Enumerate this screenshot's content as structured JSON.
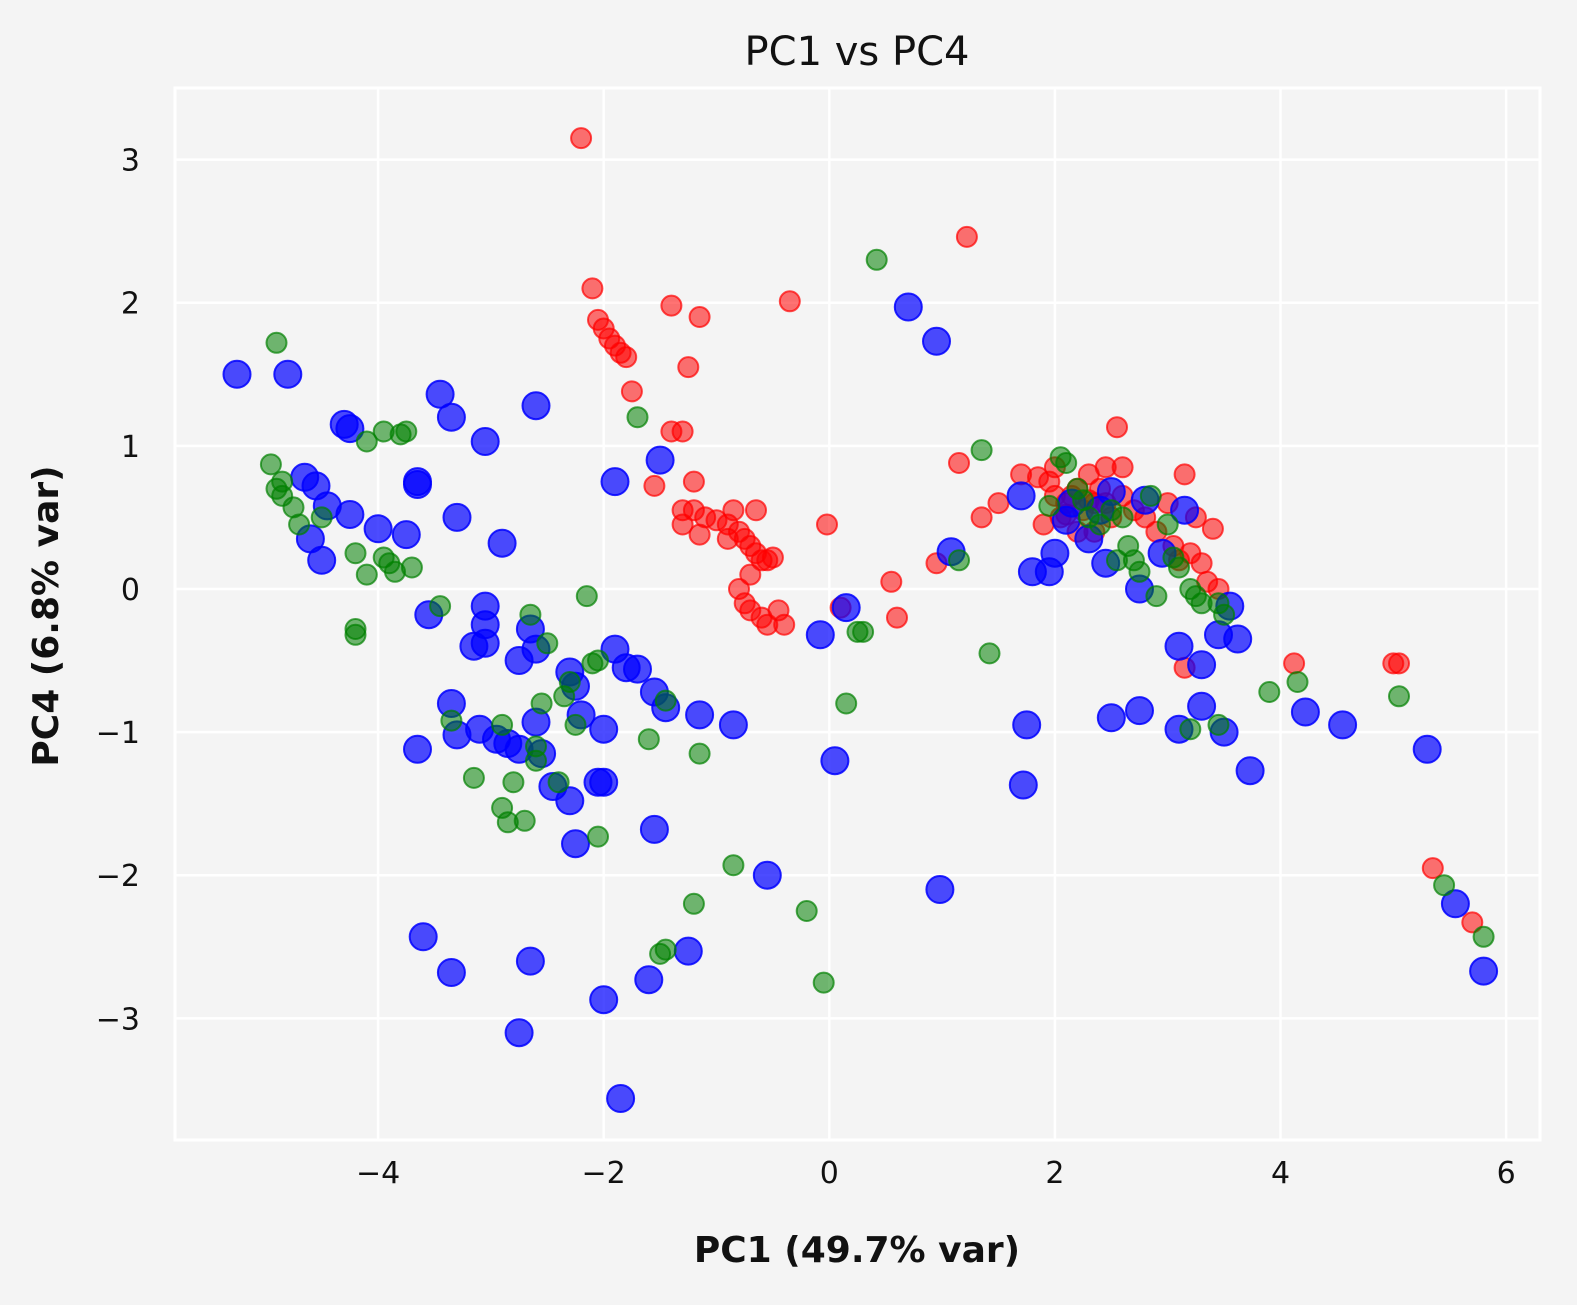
{
  "chart_data": {
    "type": "scatter",
    "title": "PC1 vs PC4",
    "xlabel": "PC1 (49.7% var)",
    "ylabel": "PC4 (6.8% var)",
    "xlim": [
      -5.8,
      6.3
    ],
    "ylim": [
      -3.85,
      3.5
    ],
    "xticks": [
      -4,
      -2,
      0,
      2,
      4,
      6
    ],
    "xtick_labels": [
      "−4",
      "−2",
      "0",
      "2",
      "4",
      "6"
    ],
    "yticks": [
      -3,
      -2,
      -1,
      0,
      1,
      2,
      3
    ],
    "ytick_labels": [
      "−3",
      "−2",
      "−1",
      "0",
      "1",
      "2",
      "3"
    ],
    "grid": true,
    "legend": null,
    "series": [
      {
        "name": "red",
        "color": "#ff0000",
        "opacity": 0.55,
        "size": "small",
        "points": [
          [
            -2.2,
            3.15
          ],
          [
            -2.1,
            2.1
          ],
          [
            -2.05,
            1.88
          ],
          [
            -2.0,
            1.82
          ],
          [
            -1.95,
            1.75
          ],
          [
            -1.9,
            1.7
          ],
          [
            -1.85,
            1.65
          ],
          [
            -1.8,
            1.62
          ],
          [
            -1.75,
            1.38
          ],
          [
            -1.4,
            1.98
          ],
          [
            -1.15,
            1.9
          ],
          [
            -1.25,
            1.55
          ],
          [
            -0.35,
            2.01
          ],
          [
            1.22,
            2.46
          ],
          [
            -1.4,
            1.1
          ],
          [
            -1.3,
            1.1
          ],
          [
            -1.55,
            0.72
          ],
          [
            -1.2,
            0.75
          ],
          [
            -1.3,
            0.55
          ],
          [
            -1.2,
            0.55
          ],
          [
            -1.1,
            0.5
          ],
          [
            -1.3,
            0.45
          ],
          [
            -1.15,
            0.38
          ],
          [
            -1.0,
            0.48
          ],
          [
            -0.9,
            0.45
          ],
          [
            -0.85,
            0.55
          ],
          [
            -0.8,
            0.4
          ],
          [
            -0.75,
            0.35
          ],
          [
            -0.7,
            0.3
          ],
          [
            -0.65,
            0.25
          ],
          [
            -0.6,
            0.2
          ],
          [
            -0.55,
            0.2
          ],
          [
            -0.7,
            0.1
          ],
          [
            -0.8,
            0.0
          ],
          [
            -0.75,
            -0.1
          ],
          [
            -0.7,
            -0.15
          ],
          [
            -0.6,
            -0.2
          ],
          [
            -0.55,
            -0.25
          ],
          [
            -0.45,
            -0.15
          ],
          [
            -0.4,
            -0.25
          ],
          [
            -0.9,
            0.35
          ],
          [
            -0.65,
            0.55
          ],
          [
            -0.5,
            0.22
          ],
          [
            -0.02,
            0.45
          ],
          [
            0.1,
            -0.13
          ],
          [
            0.55,
            0.05
          ],
          [
            0.6,
            -0.2
          ],
          [
            0.95,
            0.18
          ],
          [
            1.15,
            0.88
          ],
          [
            1.35,
            0.5
          ],
          [
            1.5,
            0.6
          ],
          [
            1.7,
            0.8
          ],
          [
            1.85,
            0.78
          ],
          [
            1.95,
            0.75
          ],
          [
            2.0,
            0.85
          ],
          [
            2.05,
            0.5
          ],
          [
            2.1,
            0.6
          ],
          [
            2.15,
            0.65
          ],
          [
            2.2,
            0.7
          ],
          [
            2.25,
            0.55
          ],
          [
            2.3,
            0.8
          ],
          [
            2.35,
            0.6
          ],
          [
            2.4,
            0.7
          ],
          [
            2.45,
            0.85
          ],
          [
            2.5,
            0.5
          ],
          [
            2.55,
            1.13
          ],
          [
            2.6,
            0.65
          ],
          [
            2.7,
            0.55
          ],
          [
            2.8,
            0.5
          ],
          [
            2.9,
            0.4
          ],
          [
            3.0,
            0.6
          ],
          [
            3.05,
            0.3
          ],
          [
            3.1,
            0.2
          ],
          [
            3.15,
            0.8
          ],
          [
            3.2,
            0.25
          ],
          [
            3.25,
            0.5
          ],
          [
            3.3,
            0.18
          ],
          [
            3.35,
            0.05
          ],
          [
            3.4,
            0.42
          ],
          [
            3.45,
            0.0
          ],
          [
            3.15,
            -0.55
          ],
          [
            4.12,
            -0.52
          ],
          [
            5.0,
            -0.52
          ],
          [
            5.05,
            -0.52
          ],
          [
            5.35,
            -1.95
          ],
          [
            5.7,
            -2.33
          ],
          [
            2.2,
            0.4
          ],
          [
            1.9,
            0.45
          ],
          [
            2.6,
            0.85
          ],
          [
            2.35,
            0.4
          ],
          [
            2.0,
            0.65
          ],
          [
            2.1,
            0.52
          ],
          [
            2.45,
            0.6
          ],
          [
            2.3,
            0.62
          ]
        ]
      },
      {
        "name": "blue",
        "color": "#0000ff",
        "opacity": 0.7,
        "size": "large",
        "points": [
          [
            -5.25,
            1.5
          ],
          [
            -4.8,
            1.5
          ],
          [
            -4.3,
            1.15
          ],
          [
            -4.25,
            1.12
          ],
          [
            -3.45,
            1.36
          ],
          [
            -3.35,
            1.2
          ],
          [
            -3.05,
            1.03
          ],
          [
            -2.6,
            1.28
          ],
          [
            -4.65,
            0.78
          ],
          [
            -4.6,
            0.35
          ],
          [
            -4.55,
            0.72
          ],
          [
            -4.5,
            0.2
          ],
          [
            -4.45,
            0.58
          ],
          [
            -4.25,
            0.52
          ],
          [
            -4.0,
            0.42
          ],
          [
            -3.75,
            0.38
          ],
          [
            -3.65,
            0.75
          ],
          [
            -3.65,
            0.73
          ],
          [
            -3.3,
            0.5
          ],
          [
            -2.9,
            0.32
          ],
          [
            -3.55,
            -0.18
          ],
          [
            -3.05,
            -0.12
          ],
          [
            -3.05,
            -0.25
          ],
          [
            -3.05,
            -0.38
          ],
          [
            -3.15,
            -0.4
          ],
          [
            -2.75,
            -0.5
          ],
          [
            -2.65,
            -0.28
          ],
          [
            -2.6,
            -0.42
          ],
          [
            -2.3,
            -0.58
          ],
          [
            -2.25,
            -0.68
          ],
          [
            -2.2,
            -0.88
          ],
          [
            -2.0,
            -0.98
          ],
          [
            -1.9,
            -0.42
          ],
          [
            -1.8,
            -0.55
          ],
          [
            -1.7,
            -0.56
          ],
          [
            -1.55,
            -0.72
          ],
          [
            -1.45,
            -0.83
          ],
          [
            -1.15,
            -0.88
          ],
          [
            -0.85,
            -0.95
          ],
          [
            -1.5,
            0.9
          ],
          [
            -1.9,
            0.75
          ],
          [
            -3.35,
            -0.8
          ],
          [
            -3.3,
            -1.02
          ],
          [
            -3.1,
            -0.98
          ],
          [
            -2.95,
            -1.05
          ],
          [
            -2.85,
            -1.08
          ],
          [
            -2.75,
            -1.12
          ],
          [
            -2.6,
            -0.93
          ],
          [
            -2.55,
            -1.15
          ],
          [
            -2.45,
            -1.38
          ],
          [
            -2.3,
            -1.48
          ],
          [
            -2.25,
            -1.78
          ],
          [
            -2.05,
            -1.35
          ],
          [
            -2.0,
            -1.35
          ],
          [
            -1.55,
            -1.68
          ],
          [
            -3.65,
            -1.12
          ],
          [
            -0.55,
            -2.0
          ],
          [
            -1.25,
            -2.53
          ],
          [
            -1.6,
            -2.73
          ],
          [
            -2.0,
            -2.87
          ],
          [
            -2.75,
            -3.1
          ],
          [
            -2.65,
            -2.6
          ],
          [
            -3.35,
            -2.68
          ],
          [
            -3.6,
            -2.43
          ],
          [
            -1.85,
            -3.56
          ],
          [
            0.05,
            -1.2
          ],
          [
            0.98,
            -2.1
          ],
          [
            -0.08,
            -0.32
          ],
          [
            0.15,
            -0.13
          ],
          [
            0.7,
            1.97
          ],
          [
            0.95,
            1.73
          ],
          [
            1.08,
            0.26
          ],
          [
            1.7,
            0.65
          ],
          [
            1.8,
            0.12
          ],
          [
            1.75,
            -0.95
          ],
          [
            1.72,
            -1.37
          ],
          [
            1.95,
            0.12
          ],
          [
            2.0,
            0.25
          ],
          [
            2.1,
            0.48
          ],
          [
            2.15,
            0.6
          ],
          [
            2.3,
            0.35
          ],
          [
            2.4,
            0.55
          ],
          [
            2.45,
            0.18
          ],
          [
            2.5,
            0.68
          ],
          [
            2.75,
            0.0
          ],
          [
            2.8,
            0.62
          ],
          [
            2.95,
            0.25
          ],
          [
            3.1,
            -0.4
          ],
          [
            3.1,
            -0.98
          ],
          [
            3.15,
            0.55
          ],
          [
            3.3,
            -0.53
          ],
          [
            3.3,
            -0.82
          ],
          [
            3.45,
            -0.32
          ],
          [
            3.5,
            -1.0
          ],
          [
            3.55,
            -0.12
          ],
          [
            3.62,
            -0.35
          ],
          [
            3.73,
            -1.27
          ],
          [
            2.5,
            -0.9
          ],
          [
            2.75,
            -0.85
          ],
          [
            4.22,
            -0.86
          ],
          [
            4.55,
            -0.95
          ],
          [
            5.3,
            -1.12
          ],
          [
            5.55,
            -2.2
          ],
          [
            5.8,
            -2.67
          ]
        ]
      },
      {
        "name": "green",
        "color": "#008000",
        "opacity": 0.55,
        "size": "small",
        "points": [
          [
            -4.9,
            1.72
          ],
          [
            -4.95,
            0.87
          ],
          [
            -4.9,
            0.7
          ],
          [
            -4.85,
            0.75
          ],
          [
            -4.85,
            0.65
          ],
          [
            -4.75,
            0.57
          ],
          [
            -4.7,
            0.45
          ],
          [
            -4.5,
            0.5
          ],
          [
            -4.1,
            1.03
          ],
          [
            -3.95,
            1.1
          ],
          [
            -3.8,
            1.08
          ],
          [
            -3.75,
            1.1
          ],
          [
            -4.2,
            0.25
          ],
          [
            -4.1,
            0.1
          ],
          [
            -3.95,
            0.22
          ],
          [
            -3.9,
            0.18
          ],
          [
            -3.85,
            0.12
          ],
          [
            -3.7,
            0.15
          ],
          [
            -4.2,
            -0.28
          ],
          [
            -4.2,
            -0.32
          ],
          [
            -3.45,
            -0.12
          ],
          [
            -3.35,
            -0.92
          ],
          [
            -3.15,
            -1.32
          ],
          [
            -2.9,
            -0.95
          ],
          [
            -2.9,
            -1.53
          ],
          [
            -2.85,
            -1.63
          ],
          [
            -2.8,
            -1.35
          ],
          [
            -2.7,
            -1.62
          ],
          [
            -2.65,
            -0.18
          ],
          [
            -2.6,
            -1.1
          ],
          [
            -2.6,
            -1.2
          ],
          [
            -2.55,
            -0.8
          ],
          [
            -2.5,
            -0.38
          ],
          [
            -2.4,
            -1.35
          ],
          [
            -2.35,
            -0.75
          ],
          [
            -2.25,
            -0.95
          ],
          [
            -2.3,
            -0.65
          ],
          [
            -2.15,
            -0.05
          ],
          [
            -2.1,
            -0.52
          ],
          [
            -2.05,
            -0.5
          ],
          [
            -2.05,
            -1.73
          ],
          [
            -1.7,
            1.2
          ],
          [
            -1.6,
            -1.05
          ],
          [
            -1.45,
            -0.78
          ],
          [
            -1.45,
            -2.52
          ],
          [
            -1.5,
            -2.55
          ],
          [
            -1.15,
            -1.15
          ],
          [
            -1.2,
            -2.2
          ],
          [
            -0.85,
            -1.93
          ],
          [
            -0.2,
            -2.25
          ],
          [
            -0.05,
            -2.75
          ],
          [
            0.15,
            -0.8
          ],
          [
            0.25,
            -0.3
          ],
          [
            0.3,
            -0.3
          ],
          [
            0.42,
            2.3
          ],
          [
            1.15,
            0.2
          ],
          [
            1.35,
            0.97
          ],
          [
            1.42,
            -0.45
          ],
          [
            1.95,
            0.58
          ],
          [
            2.05,
            0.92
          ],
          [
            2.1,
            0.88
          ],
          [
            2.2,
            0.7
          ],
          [
            2.25,
            0.62
          ],
          [
            2.3,
            0.5
          ],
          [
            2.4,
            0.45
          ],
          [
            2.5,
            0.55
          ],
          [
            2.6,
            0.5
          ],
          [
            2.65,
            0.3
          ],
          [
            2.7,
            0.2
          ],
          [
            2.85,
            0.65
          ],
          [
            2.9,
            -0.05
          ],
          [
            3.0,
            0.45
          ],
          [
            3.05,
            0.22
          ],
          [
            3.1,
            0.15
          ],
          [
            3.2,
            0.0
          ],
          [
            3.25,
            -0.05
          ],
          [
            3.3,
            -0.1
          ],
          [
            3.45,
            -0.1
          ],
          [
            3.5,
            -0.18
          ],
          [
            3.45,
            -0.95
          ],
          [
            3.2,
            -0.98
          ],
          [
            3.9,
            -0.72
          ],
          [
            4.15,
            -0.65
          ],
          [
            5.05,
            -0.75
          ],
          [
            5.45,
            -2.07
          ],
          [
            5.8,
            -2.43
          ],
          [
            2.75,
            0.12
          ],
          [
            2.55,
            0.2
          ]
        ]
      }
    ]
  }
}
